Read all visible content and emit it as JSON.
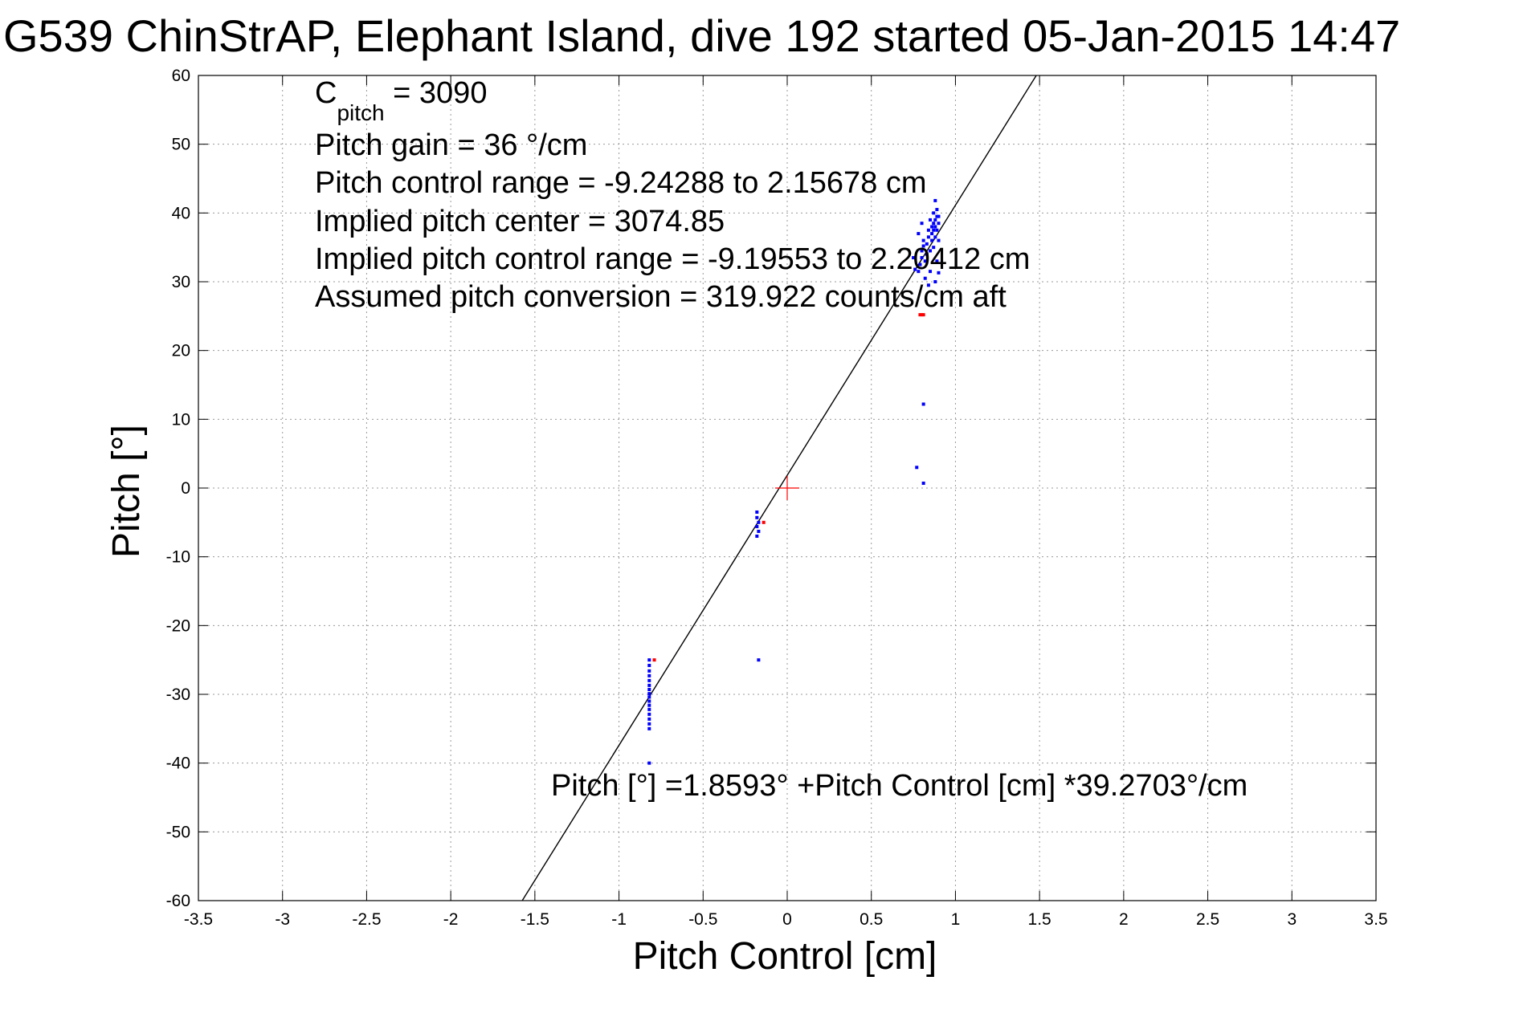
{
  "chart_data": {
    "type": "scatter",
    "title": "G539 ChinStrAP, Elephant Island, dive 192 started 05-Jan-2015 14:47",
    "xlabel": "Pitch Control [cm]",
    "ylabel": "Pitch [°]",
    "xlim": [
      -3.5,
      3.5
    ],
    "ylim": [
      -60,
      60
    ],
    "xticks": [
      -3.5,
      -3,
      -2.5,
      -2,
      -1.5,
      -1,
      -0.5,
      0,
      0.5,
      1,
      1.5,
      2,
      2.5,
      3,
      3.5
    ],
    "xtick_labels": [
      "-3.5",
      "-3",
      "-2.5",
      "-2",
      "-1.5",
      "-1",
      "-0.5",
      "0",
      "0.5",
      "1",
      "1.5",
      "2",
      "2.5",
      "3",
      "3.5"
    ],
    "yticks": [
      -60,
      -50,
      -40,
      -30,
      -20,
      -10,
      0,
      10,
      20,
      30,
      40,
      50,
      60
    ],
    "ytick_labels": [
      "-60",
      "-50",
      "-40",
      "-30",
      "-20",
      "-10",
      "0",
      "10",
      "20",
      "30",
      "40",
      "50",
      "60"
    ],
    "grid": true,
    "fit_line": {
      "intercept": 1.8593,
      "slope": 39.2703
    },
    "center_marker": {
      "x": 0,
      "y": 0,
      "color": "#ff0000"
    },
    "colors": {
      "series_main": "#0000ff",
      "series_alt": "#ff0000",
      "fit": "#000000",
      "grid": "#9a9a9a"
    },
    "series": [
      {
        "color": "#0000ff",
        "points": [
          [
            -0.82,
            -25.0
          ],
          [
            -0.82,
            -25.8
          ],
          [
            -0.82,
            -26.6
          ],
          [
            -0.82,
            -27.3
          ],
          [
            -0.82,
            -28.0
          ],
          [
            -0.82,
            -28.7
          ],
          [
            -0.82,
            -29.3
          ],
          [
            -0.82,
            -29.9
          ],
          [
            -0.82,
            -30.4
          ],
          [
            -0.82,
            -31.0
          ],
          [
            -0.82,
            -31.6
          ],
          [
            -0.82,
            -32.2
          ],
          [
            -0.82,
            -32.9
          ],
          [
            -0.82,
            -33.6
          ],
          [
            -0.82,
            -34.3
          ],
          [
            -0.82,
            -35.0
          ],
          [
            -0.82,
            -40.0
          ],
          [
            -0.18,
            -3.5
          ],
          [
            -0.18,
            -4.3
          ],
          [
            -0.17,
            -5.0
          ],
          [
            -0.18,
            -5.6
          ],
          [
            -0.17,
            -6.3
          ],
          [
            -0.18,
            -7.0
          ],
          [
            -0.17,
            -25.0
          ],
          [
            0.77,
            3.0
          ],
          [
            0.81,
            0.7
          ],
          [
            0.81,
            12.2
          ],
          [
            0.78,
            31.5
          ],
          [
            0.79,
            32.5
          ],
          [
            0.8,
            33.5
          ],
          [
            0.8,
            34.5
          ],
          [
            0.81,
            35.2
          ],
          [
            0.81,
            36.0
          ],
          [
            0.82,
            30.5
          ],
          [
            0.82,
            33.0
          ],
          [
            0.83,
            34.0
          ],
          [
            0.83,
            35.5
          ],
          [
            0.84,
            36.5
          ],
          [
            0.84,
            37.5
          ],
          [
            0.84,
            29.5
          ],
          [
            0.85,
            31.5
          ],
          [
            0.85,
            34.5
          ],
          [
            0.86,
            36.0
          ],
          [
            0.86,
            37.0
          ],
          [
            0.86,
            38.0
          ],
          [
            0.87,
            35.0
          ],
          [
            0.87,
            37.5
          ],
          [
            0.87,
            38.5
          ],
          [
            0.88,
            36.5
          ],
          [
            0.88,
            38.0
          ],
          [
            0.88,
            39.0
          ],
          [
            0.88,
            30.0
          ],
          [
            0.89,
            37.5
          ],
          [
            0.89,
            39.5
          ],
          [
            0.89,
            40.5
          ],
          [
            0.89,
            33.0
          ],
          [
            0.9,
            38.5
          ],
          [
            0.9,
            39.5
          ],
          [
            0.9,
            36.0
          ],
          [
            0.88,
            41.8
          ],
          [
            0.9,
            31.3
          ],
          [
            0.78,
            37.0
          ],
          [
            0.75,
            33.5
          ],
          [
            0.76,
            31.8
          ],
          [
            0.8,
            38.5
          ],
          [
            0.85,
            39.0
          ],
          [
            0.87,
            40.0
          ]
        ]
      },
      {
        "color": "#ff0000",
        "points": [
          [
            -0.79,
            -25.0
          ],
          [
            -0.14,
            -5.0
          ],
          [
            0.79,
            25.2
          ],
          [
            0.8,
            25.2
          ],
          [
            0.81,
            25.2
          ]
        ]
      }
    ],
    "annotations": [
      {
        "text": "Pitch gain = 36 °/cm"
      },
      {
        "text": "Pitch control range = -9.24288 to 2.15678 cm"
      },
      {
        "text": "Implied pitch center = 3074.85"
      },
      {
        "text": "Implied pitch control range = -9.19553 to 2.20412 cm"
      },
      {
        "text": "Assumed pitch conversion = 319.922 counts/cm aft"
      }
    ],
    "c_pitch": {
      "main": "C",
      "sub": "pitch",
      "rest": " = 3090"
    },
    "fit_label": "Pitch [°] =1.8593° +Pitch Control [cm] *39.2703°/cm"
  }
}
